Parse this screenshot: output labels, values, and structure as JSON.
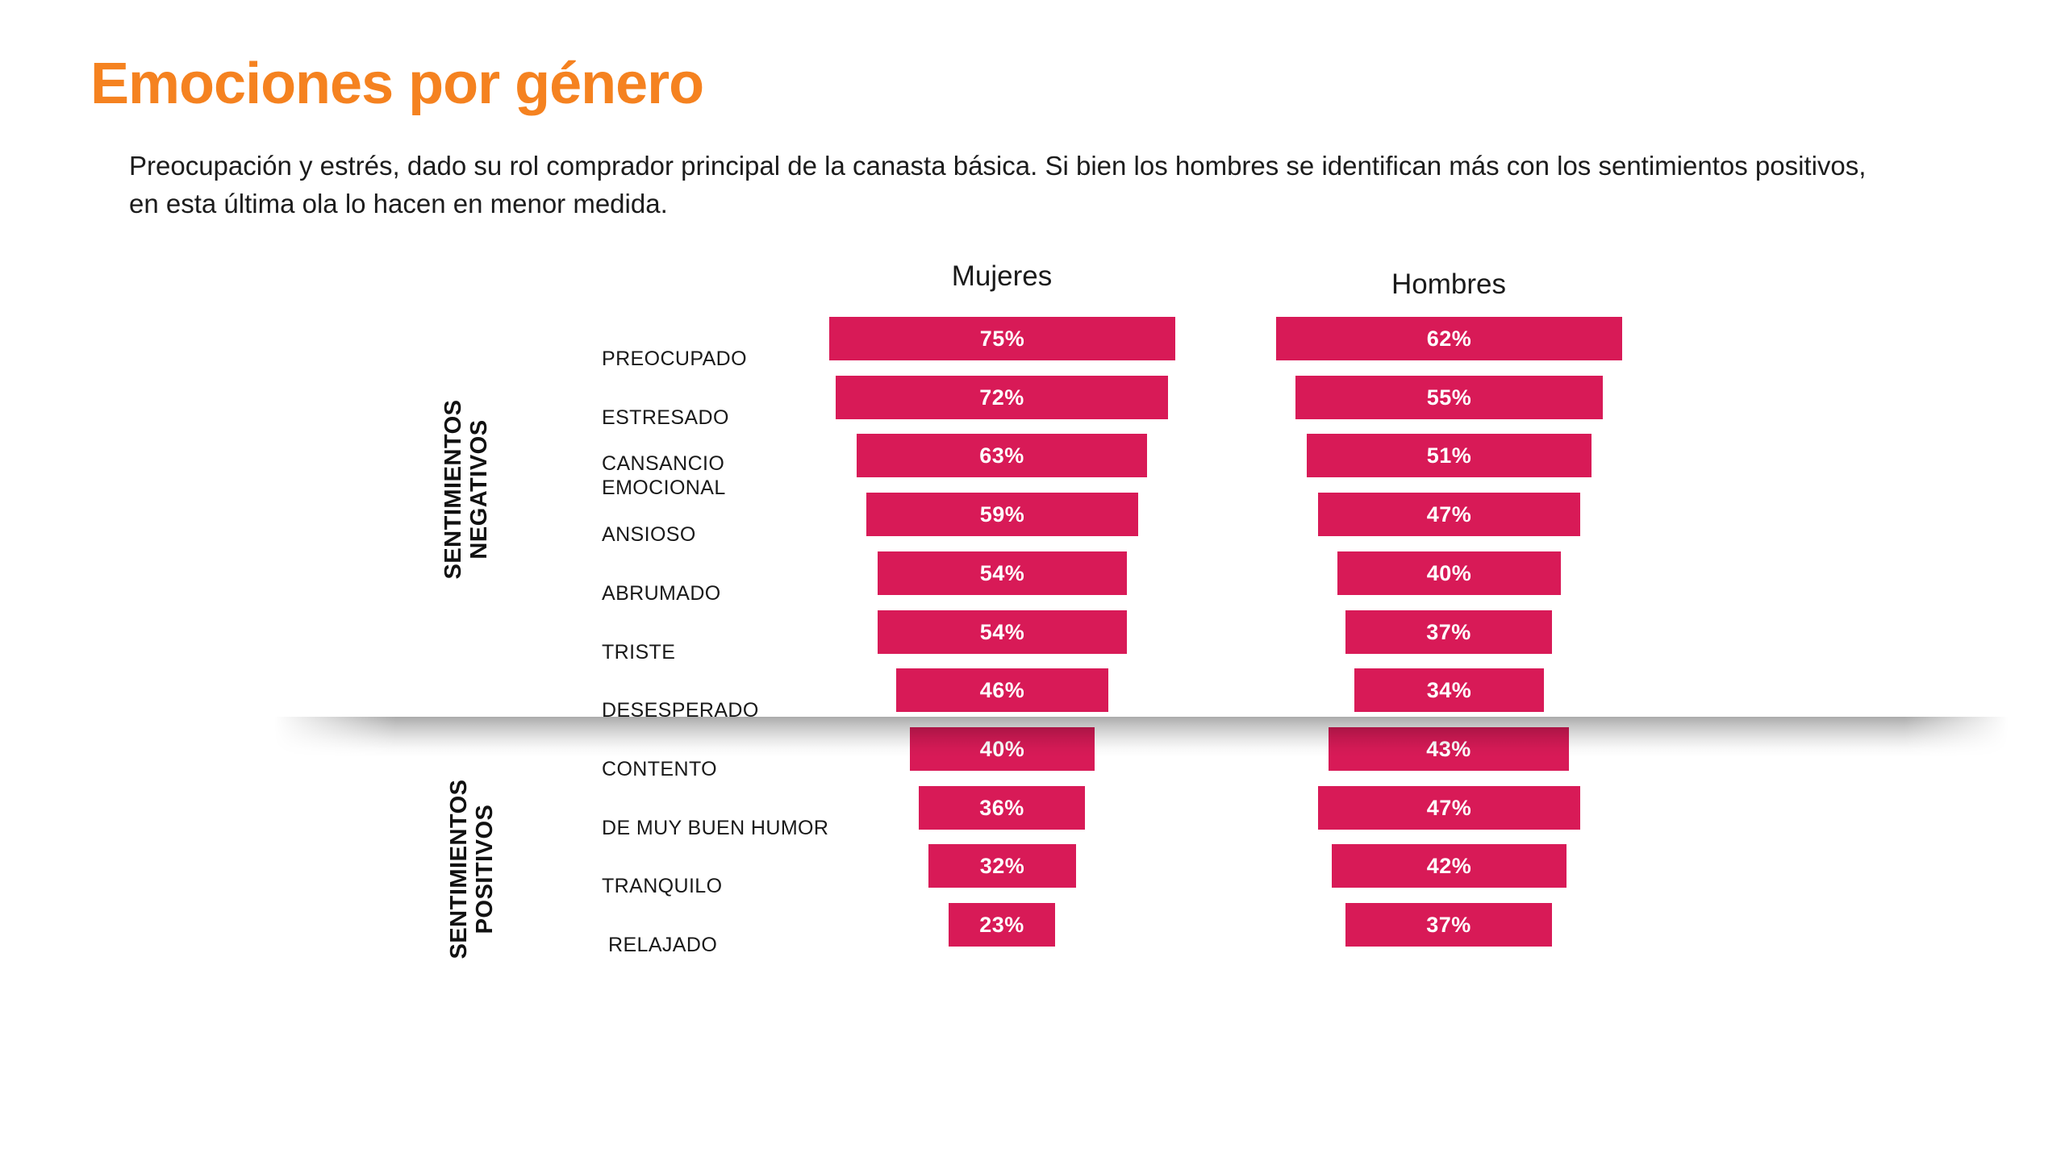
{
  "slide": {
    "title": "Emociones por género",
    "subtitle_lines": [
      "Preocupación y estrés, dado su rol comprador principal de la canasta básica. Si bien los hombres se identifican más con los sentimientos positivos,",
      "en esta última ola lo hacen en menor medida."
    ],
    "group_labels": [
      {
        "lines": [
          "SENTIMIENTOS",
          "NEGATIVOS"
        ]
      },
      {
        "lines": [
          "SENTIMIENTOS",
          "POSITIVOS"
        ]
      }
    ],
    "colors": {
      "title": "#F58220",
      "bar": "#D81A57",
      "bar_value_text": "#FFFFFF",
      "body_text": "#1C1C1C",
      "background": "#FFFFFF"
    }
  },
  "chart_data": {
    "type": "bar",
    "subtype": "horizontal-centered-funnel",
    "title": "Emociones por género",
    "value_format": "percent",
    "legend_position": "column-headers-top",
    "column_headers": [
      "Mujeres",
      "Hombres"
    ],
    "categories": [
      "PREOCUPADO",
      "ESTRESADO",
      "CANSANCIO\nEMOCIONAL",
      "ANSIOSO",
      "ABRUMADO",
      "TRISTE",
      "DESESPERADO",
      "CONTENTO",
      "DE MUY BUEN HUMOR",
      "TRANQUILO",
      "RELAJADO"
    ],
    "series": [
      {
        "name": "Mujeres",
        "values": [
          75,
          72,
          63,
          59,
          54,
          54,
          46,
          40,
          36,
          32,
          23
        ]
      },
      {
        "name": "Hombres",
        "values": [
          62,
          55,
          51,
          47,
          40,
          37,
          34,
          43,
          47,
          42,
          37
        ]
      }
    ],
    "row_groups": [
      {
        "label": "SENTIMIENTOS NEGATIVOS",
        "first_category": "PREOCUPADO",
        "last_category": "DESESPERADO"
      },
      {
        "label": "SENTIMIENTOS POSITIVOS",
        "first_category": "CONTENTO",
        "last_category": "RELAJADO"
      }
    ]
  }
}
